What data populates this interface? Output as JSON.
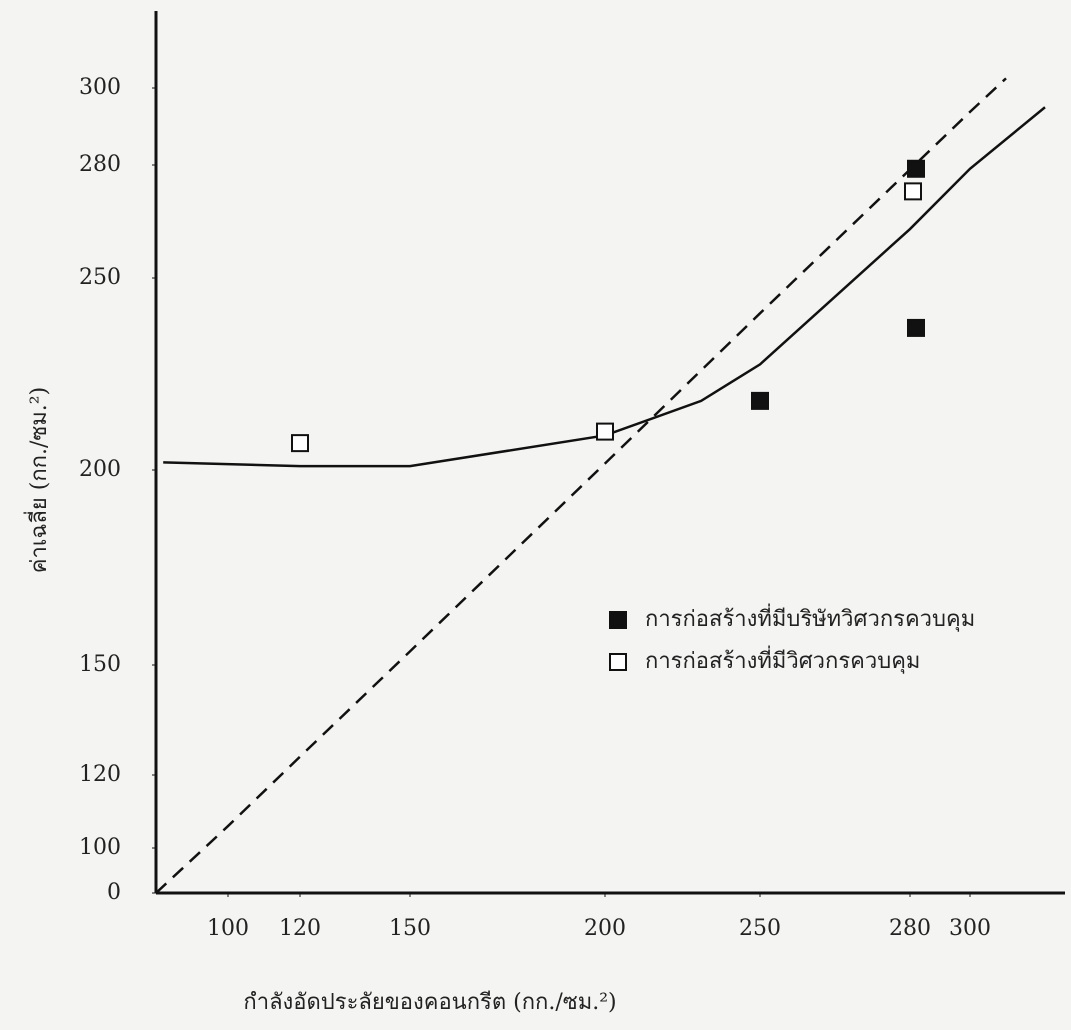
{
  "chart_data": {
    "type": "scatter",
    "x_label": "กำลังอัดประลัยของคอนกรีต (กก./ซม.²)",
    "y_label": "ค่าเฉลี่ย (กก./ซม.²)",
    "xlim": [
      80,
      325
    ],
    "ylim": [
      0,
      320
    ],
    "xticks": [
      100,
      120,
      150,
      200,
      250,
      280,
      300
    ],
    "yticks": [
      0,
      100,
      120,
      150,
      200,
      250,
      280,
      300
    ],
    "legend": "center-right",
    "series": [
      {
        "name": "การก่อสร้างที่มีบริษัทวิศวกรควบคุม",
        "marker": "filled",
        "color": "#111111",
        "x": [
          282,
          282,
          250
        ],
        "values": [
          279,
          237,
          218
        ]
      },
      {
        "name": "การก่อสร้างที่มีวิศวกรควบคุม",
        "marker": "open",
        "color": "#111111",
        "x": [
          120,
          200,
          281
        ],
        "values": [
          207,
          210,
          273
        ]
      }
    ],
    "lines": [
      {
        "style": "dashed",
        "color": "#111111",
        "x": [
          80,
          100,
          120,
          150,
          200,
          250,
          280,
          300,
          312
        ],
        "values": [
          0,
          106,
          125,
          153.5,
          201.7,
          240.8,
          278.8,
          293.8,
          302.5
        ]
      },
      {
        "style": "solid",
        "color": "#111111",
        "x": [
          82,
          120,
          150,
          200,
          231,
          250,
          280,
          300,
          325
        ],
        "values": [
          202,
          201,
          201,
          209,
          218,
          227.5,
          263,
          279,
          295
        ]
      }
    ]
  }
}
